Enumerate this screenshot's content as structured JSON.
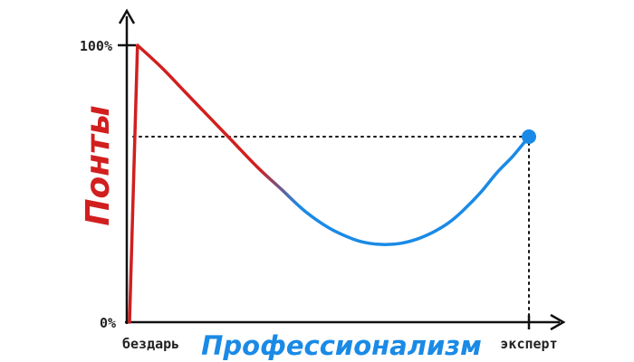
{
  "chart_data": {
    "type": "line",
    "xlabel": "Профессионализм",
    "ylabel": "Понты",
    "y_ticks": [
      "100%",
      "0%"
    ],
    "x_categories": [
      "бездарь",
      "эксперт"
    ],
    "xlim": [
      0,
      100
    ],
    "ylim": [
      0,
      100
    ],
    "series": [
      {
        "x": [
          0,
          2,
          8,
          14,
          20,
          26,
          32,
          38,
          44,
          50,
          56,
          60,
          64,
          68,
          72,
          76,
          80,
          84,
          88,
          92,
          96,
          100
        ],
        "y": [
          0,
          100,
          92,
          83,
          74,
          65,
          56,
          48,
          40,
          34,
          30,
          28.5,
          28,
          28.5,
          30,
          32.5,
          36,
          41,
          47,
          54,
          60,
          67
        ]
      }
    ],
    "reference_level": 67,
    "colors": {
      "y_title": "#d11f1f",
      "x_title": "#1a8ae6",
      "curve_start": "#d11f1f",
      "curve_end": "#1a8ae6",
      "axis": "#111111",
      "guide": "#111111"
    }
  }
}
